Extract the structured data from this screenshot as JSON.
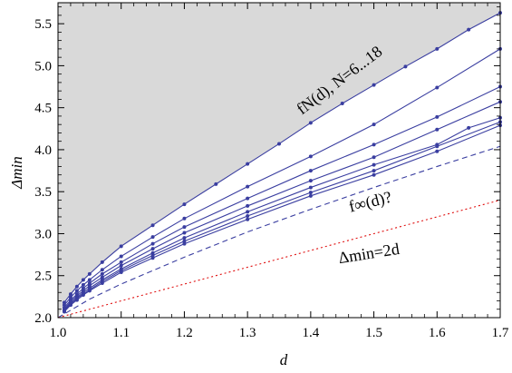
{
  "chart_data": {
    "type": "line",
    "title": "",
    "xlabel": "d",
    "ylabel": "Δmin",
    "xlim": [
      1.0,
      1.7
    ],
    "ylim": [
      2.0,
      5.75
    ],
    "xticks": [
      "1.0",
      "1.1",
      "1.2",
      "1.3",
      "1.4",
      "1.5",
      "1.6",
      "1.7"
    ],
    "yticks": [
      "2.0",
      "2.5",
      "3.0",
      "3.5",
      "4.0",
      "4.5",
      "5.0",
      "5.5"
    ],
    "grid": false,
    "shaded_region": "above f_N(d) curves, gray",
    "annotations": {
      "fN": "fN(d), N=6...18",
      "finf": "f∞(d)?",
      "delta": "Δmin=2d"
    },
    "series": [
      {
        "x": [
          1.01,
          1.02,
          1.03,
          1.04,
          1.05,
          1.07,
          1.1,
          1.15,
          1.2,
          1.25,
          1.3,
          1.35,
          1.4,
          1.45,
          1.5,
          1.55,
          1.6,
          1.65,
          1.7
        ],
        "y": [
          2.18,
          2.28,
          2.37,
          2.45,
          2.52,
          2.66,
          2.85,
          3.1,
          3.35,
          3.59,
          3.83,
          4.07,
          4.32,
          4.55,
          4.77,
          4.99,
          5.2,
          5.43,
          5.63
        ],
        "color": "#3a3ea0"
      },
      {
        "x": [
          1.01,
          1.02,
          1.03,
          1.04,
          1.05,
          1.07,
          1.1,
          1.15,
          1.2,
          1.3,
          1.4,
          1.5,
          1.6,
          1.7
        ],
        "y": [
          2.15,
          2.24,
          2.32,
          2.39,
          2.45,
          2.57,
          2.73,
          2.96,
          3.18,
          3.56,
          3.92,
          4.3,
          4.74,
          5.2
        ],
        "color": "#3a3ea0"
      },
      {
        "x": [
          1.01,
          1.02,
          1.03,
          1.04,
          1.05,
          1.07,
          1.1,
          1.15,
          1.2,
          1.3,
          1.4,
          1.5,
          1.6,
          1.7
        ],
        "y": [
          2.12,
          2.21,
          2.28,
          2.35,
          2.41,
          2.52,
          2.66,
          2.88,
          3.08,
          3.42,
          3.75,
          4.06,
          4.39,
          4.75
        ],
        "color": "#3a3ea0"
      },
      {
        "x": [
          1.01,
          1.02,
          1.03,
          1.04,
          1.05,
          1.07,
          1.1,
          1.15,
          1.2,
          1.3,
          1.4,
          1.5,
          1.6,
          1.7
        ],
        "y": [
          2.1,
          2.19,
          2.26,
          2.32,
          2.38,
          2.48,
          2.62,
          2.82,
          3.01,
          3.33,
          3.63,
          3.91,
          4.24,
          4.57
        ],
        "color": "#3a3ea0"
      },
      {
        "x": [
          1.01,
          1.02,
          1.03,
          1.04,
          1.05,
          1.07,
          1.1,
          1.15,
          1.2,
          1.3,
          1.4,
          1.5,
          1.6,
          1.65,
          1.7
        ],
        "y": [
          2.09,
          2.17,
          2.24,
          2.3,
          2.35,
          2.45,
          2.58,
          2.77,
          2.95,
          3.26,
          3.55,
          3.82,
          4.06,
          4.26,
          4.38
        ],
        "color": "#3a3ea0"
      },
      {
        "x": [
          1.01,
          1.02,
          1.03,
          1.04,
          1.05,
          1.07,
          1.1,
          1.15,
          1.2,
          1.3,
          1.4,
          1.5,
          1.6,
          1.7
        ],
        "y": [
          2.08,
          2.16,
          2.23,
          2.28,
          2.33,
          2.43,
          2.56,
          2.74,
          2.91,
          3.21,
          3.49,
          3.75,
          4.04,
          4.33
        ],
        "color": "#3a3ea0"
      },
      {
        "x": [
          1.01,
          1.02,
          1.03,
          1.04,
          1.05,
          1.07,
          1.1,
          1.15,
          1.2,
          1.3,
          1.4,
          1.5,
          1.6,
          1.7
        ],
        "y": [
          2.07,
          2.15,
          2.21,
          2.27,
          2.32,
          2.41,
          2.54,
          2.71,
          2.88,
          3.17,
          3.45,
          3.7,
          3.98,
          4.29
        ],
        "color": "#3a3ea0"
      }
    ],
    "reference_lines": [
      {
        "style": "dashed",
        "color": "#3a3ea0",
        "x": [
          1.0,
          1.05,
          1.1,
          1.2,
          1.3,
          1.4,
          1.5,
          1.6,
          1.7
        ],
        "y": [
          2.0,
          2.22,
          2.4,
          2.72,
          3.02,
          3.29,
          3.55,
          3.8,
          4.04
        ]
      },
      {
        "style": "dotted",
        "color": "#e01010",
        "x": [
          1.0,
          1.7
        ],
        "y": [
          2.0,
          3.4
        ]
      }
    ]
  }
}
